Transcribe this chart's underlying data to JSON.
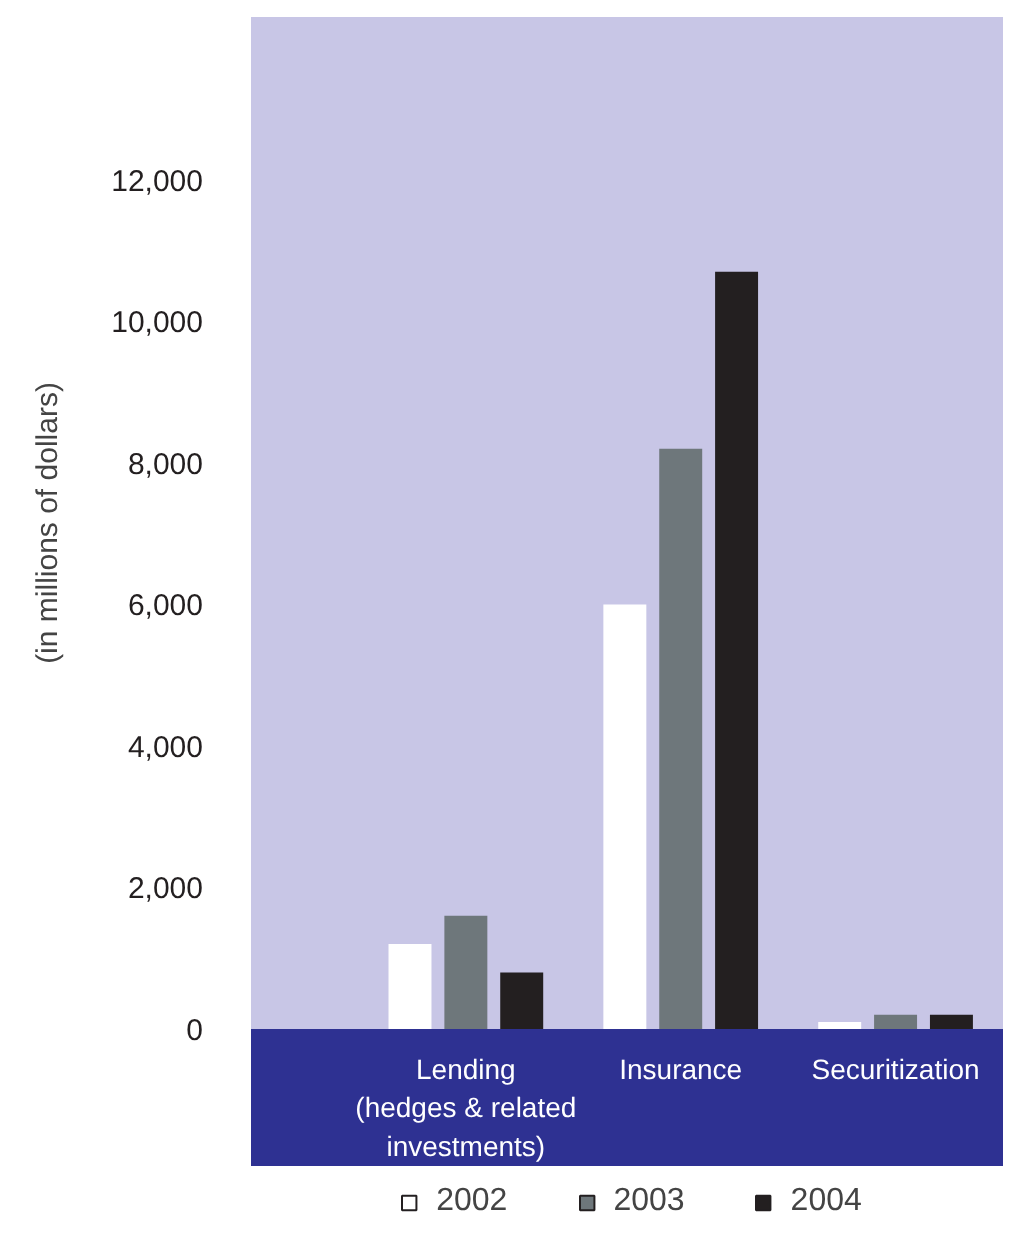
{
  "chart_data": {
    "type": "bar",
    "ylabel": "(in millions of dollars)",
    "categories": [
      "Lending\n(hedges & related\ninvestments)",
      "Insurance",
      "Securitization"
    ],
    "series": [
      {
        "name": "2002",
        "color": "#ffffff",
        "values": [
          1200,
          6000,
          100
        ]
      },
      {
        "name": "2003",
        "color": "#6e777b",
        "values": [
          1600,
          8200,
          200
        ]
      },
      {
        "name": "2004",
        "color": "#231f20",
        "values": [
          800,
          10700,
          200
        ]
      }
    ],
    "ylim": [
      0,
      14300
    ],
    "yticks": [
      0,
      {
        "value": 2000,
        "label": "2,000"
      },
      {
        "value": 4000,
        "label": "4,000"
      },
      {
        "value": 6000,
        "label": "6,000"
      },
      {
        "value": 8000,
        "label": "8,000"
      },
      {
        "value": 10000,
        "label": "10,000"
      },
      {
        "value": 12000,
        "label": "12,000"
      }
    ],
    "grid": false,
    "legend": "bottom"
  }
}
